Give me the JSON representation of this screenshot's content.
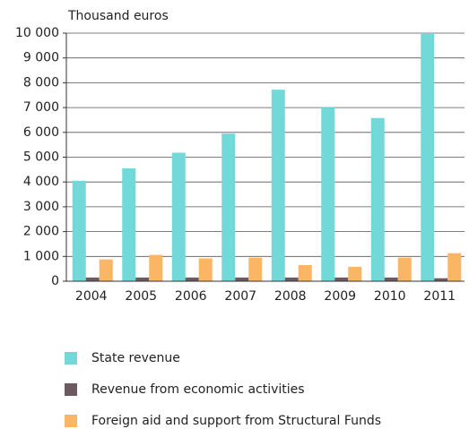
{
  "chart_data": {
    "type": "bar",
    "y_axis_label": "Thousand euros",
    "categories": [
      "2004",
      "2005",
      "2006",
      "2007",
      "2008",
      "2009",
      "2010",
      "2011"
    ],
    "series": [
      {
        "name": "State revenue",
        "color": "#72d9d8",
        "values": [
          4050,
          4550,
          5180,
          5950,
          7720,
          7000,
          6580,
          10000
        ]
      },
      {
        "name": "Revenue from economic activities",
        "color": "#6b5b5f",
        "values": [
          150,
          150,
          150,
          150,
          150,
          150,
          150,
          120
        ]
      },
      {
        "name": "Foreign aid and support from Structural Funds",
        "color": "#fbb665",
        "values": [
          880,
          1060,
          920,
          950,
          650,
          580,
          950,
          1130
        ]
      }
    ],
    "ylim": [
      0,
      10000
    ],
    "yticks": [
      0,
      {
        "value": 1000,
        "label": "1 000"
      },
      {
        "value": 2000,
        "label": "2 000"
      },
      {
        "value": 3000,
        "label": "3 000"
      },
      {
        "value": 4000,
        "label": "4 000"
      },
      {
        "value": 5000,
        "label": "5 000"
      },
      {
        "value": 6000,
        "label": "6 000"
      },
      {
        "value": 7000,
        "label": "7 000"
      },
      {
        "value": 8000,
        "label": "8 000"
      },
      {
        "value": 9000,
        "label": "9 000"
      },
      {
        "value": 10000,
        "label": "10 000"
      }
    ],
    "grid": true
  }
}
